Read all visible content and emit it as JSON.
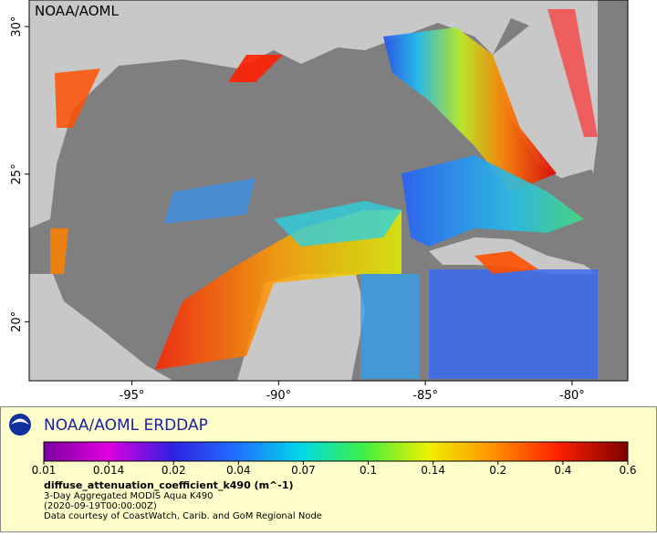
{
  "map": {
    "watermark": "NOAA/AOML",
    "xlim": [
      -98.5,
      -78.1
    ],
    "ylim": [
      18,
      30.9
    ],
    "xticks": [
      {
        "value": -95,
        "label": "-95°"
      },
      {
        "value": -90,
        "label": "-90°"
      },
      {
        "value": -85,
        "label": "-85°"
      },
      {
        "value": -80,
        "label": "-80°"
      }
    ],
    "yticks": [
      {
        "value": 20,
        "label": "20°"
      },
      {
        "value": 25,
        "label": "25°"
      },
      {
        "value": 30,
        "label": "30°"
      }
    ],
    "legend": {
      "title": "NOAA/AOML ERDDAP",
      "colorbar_ticks": [
        0.01,
        0.014,
        0.02,
        0.04,
        0.07,
        0.1,
        0.14,
        0.2,
        0.4,
        0.6
      ],
      "variable": "diffuse_attenuation_coefficient_k490 (m^-1)",
      "dataset": "3-Day Aggregated MODIS Aqua K490",
      "time": "(2020-09-19T00:00:00Z)",
      "credit": "Data courtesy of CoastWatch, Carib. and GoM Regional Node"
    }
  }
}
